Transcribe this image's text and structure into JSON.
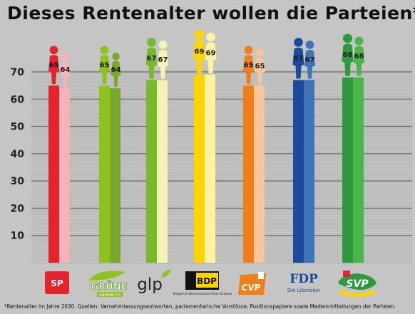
{
  "chart_data": {
    "type": "bar",
    "title": "Dieses Rentenalter wollen die Parteien*",
    "categories": [
      "SP",
      "GRÜNE",
      "glp",
      "BDP",
      "CVP",
      "FDP",
      "SVP"
    ],
    "category_logos": {
      "SP": "SP",
      "GRÜNE": "GRÜNE",
      "glp": "glp",
      "BDP": "BDP",
      "CVP": "CVP",
      "FDP": "FDP",
      "SVP": "SVP"
    },
    "logo_subtexts": {
      "GRÜNE": "GRUENE.CH",
      "BDP": "Bürgerlich-Demokratische Partei Schweiz",
      "FDP": "Die Liberalen"
    },
    "series": [
      {
        "role": "men",
        "values": [
          65,
          65,
          67,
          69,
          65,
          67,
          68
        ]
      },
      {
        "role": "women",
        "values": [
          64,
          64,
          67,
          69,
          65,
          67,
          68
        ]
      }
    ],
    "colors": {
      "men": [
        "#e5232d",
        "#8dc21f",
        "#7ab82d",
        "#ffd400",
        "#f07f1a",
        "#1c4a9c",
        "#2e9a3c"
      ],
      "women": [
        "#f4b3b8",
        "#7aa82a",
        "#f6f2b5",
        "#fff2a0",
        "#f6c69a",
        "#3f73b5",
        "#4ab548"
      ]
    },
    "yticks": [
      10,
      20,
      30,
      40,
      50,
      60,
      70
    ],
    "ylim": [
      0,
      70
    ],
    "grid": true,
    "footnote": "*Rentenalter im Jahre 2030. Quellen: Vernehmlassungsantworten, parlamentarische Vorstösse, Positionspapiere sowie Medienmitteilungen der Parteien."
  }
}
